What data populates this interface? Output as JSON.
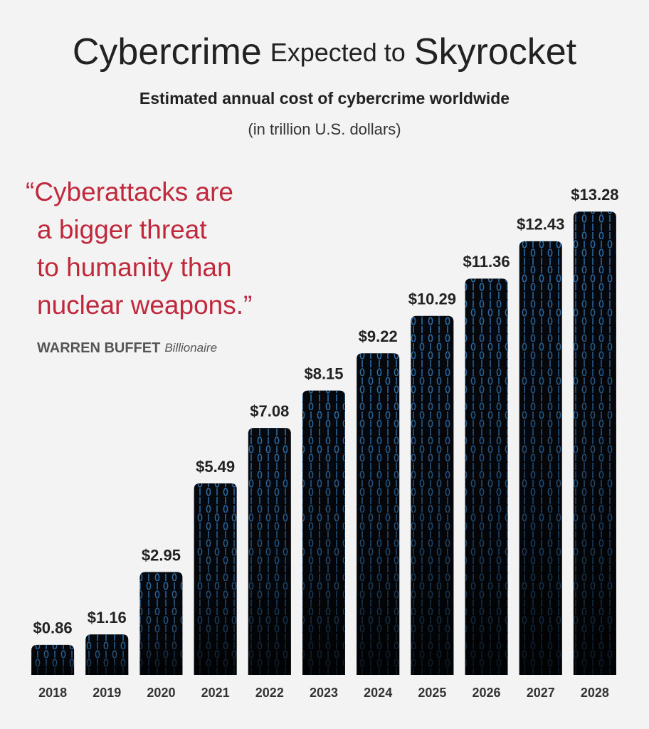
{
  "chart_data": {
    "type": "bar",
    "title": [
      "Cybercrime",
      "Expected to",
      "Skyrocket"
    ],
    "subtitle": "Estimated annual cost of cybercrime worldwide",
    "unit_note": "(in trillion U.S. dollars)",
    "quote": [
      "“Cyberattacks are",
      "a bigger threat",
      "to humanity than",
      "nuclear weapons.”"
    ],
    "quote_author": "WARREN BUFFET",
    "quote_author_role": "Billionaire",
    "categories": [
      "2018",
      "2019",
      "2020",
      "2021",
      "2022",
      "2023",
      "2024",
      "2025",
      "2026",
      "2027",
      "2028"
    ],
    "values": [
      0.86,
      1.16,
      2.95,
      5.49,
      7.08,
      8.15,
      9.22,
      10.29,
      11.36,
      12.43,
      13.28
    ],
    "value_labels": [
      "$0.86",
      "$1.16",
      "$2.95",
      "$5.49",
      "$7.08",
      "$8.15",
      "$9.22",
      "$10.29",
      "$11.36",
      "$12.43",
      "$13.28"
    ],
    "color": "#05080d",
    "ylim": [
      0,
      14
    ]
  }
}
